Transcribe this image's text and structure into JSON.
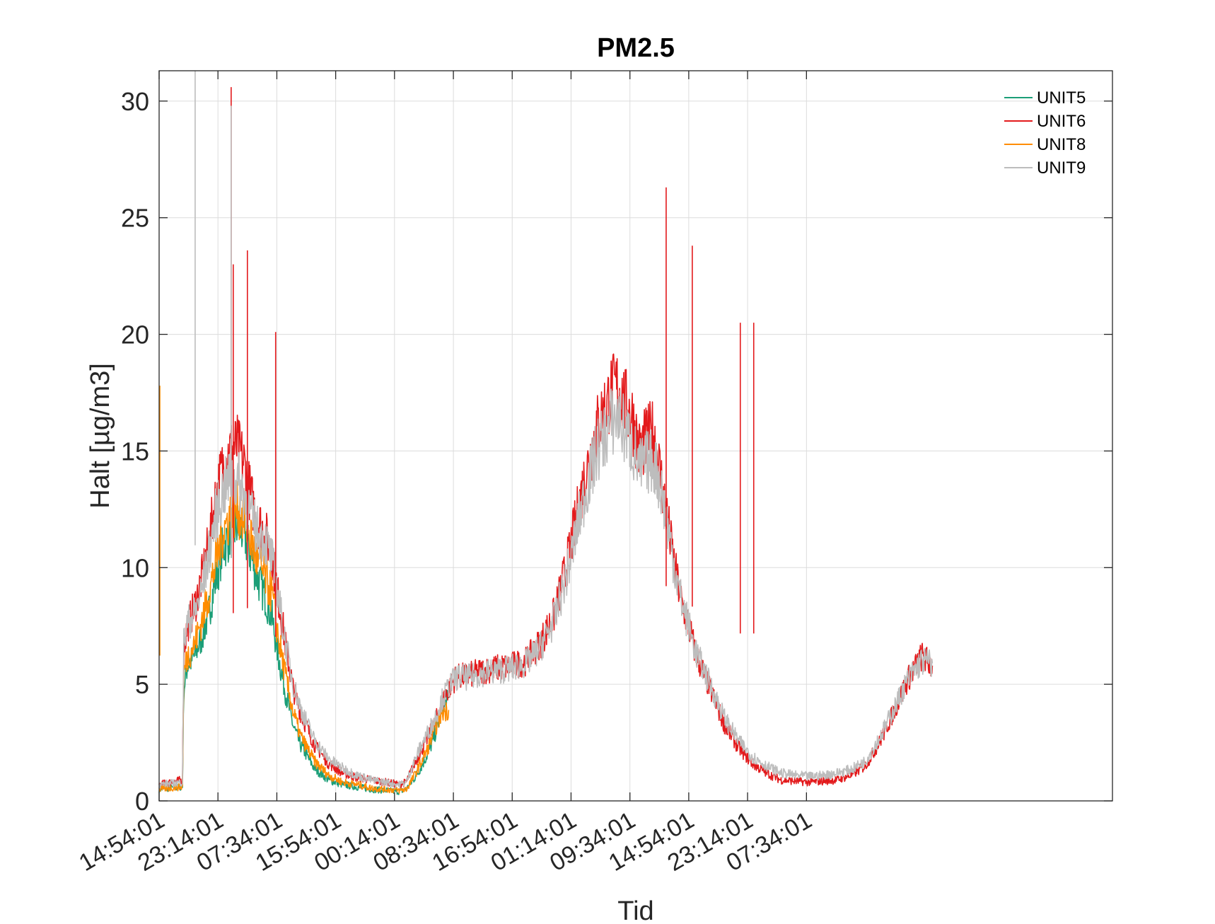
{
  "chart_data": {
    "type": "line",
    "title": "PM2.5",
    "xlabel": "Tid",
    "ylabel": "Halt [µg/m3]",
    "x_unit": "hours",
    "xlim": [
      0,
      135
    ],
    "ylim": [
      0,
      31.3
    ],
    "grid": true,
    "legend_position": "top-right",
    "x_ticks": [
      {
        "x": 0,
        "label": "14:54:01"
      },
      {
        "x": 8.33,
        "label": "23:14:01"
      },
      {
        "x": 16.67,
        "label": "07:34:01"
      },
      {
        "x": 25,
        "label": "15:54:01"
      },
      {
        "x": 33.33,
        "label": "00:14:01"
      },
      {
        "x": 41.67,
        "label": "08:34:01"
      },
      {
        "x": 50,
        "label": "16:54:01"
      },
      {
        "x": 58.33,
        "label": "01:14:01"
      },
      {
        "x": 66.67,
        "label": "09:34:01"
      },
      {
        "x": 75,
        "label": "14:54:01"
      },
      {
        "x": 83.33,
        "label": "23:14:01"
      },
      {
        "x": 91.67,
        "label": "07:34:01"
      }
    ],
    "y_ticks": [
      0,
      5,
      10,
      15,
      20,
      25,
      30
    ],
    "series": [
      {
        "name": "UNIT5",
        "color": "#1b9e77",
        "points": [
          [
            0,
            0.5
          ],
          [
            3.3,
            0.6
          ],
          [
            3.5,
            4.8
          ],
          [
            4,
            5.8
          ],
          [
            5,
            6.2
          ],
          [
            6,
            7.0
          ],
          [
            7,
            8.0
          ],
          [
            8,
            9.5
          ],
          [
            9,
            10.8
          ],
          [
            10,
            11.4
          ],
          [
            11,
            11.8
          ],
          [
            12,
            11.5
          ],
          [
            13,
            10.5
          ],
          [
            14,
            9.5
          ],
          [
            15,
            8.8
          ],
          [
            16,
            7.8
          ],
          [
            17,
            6.0
          ],
          [
            18,
            4.5
          ],
          [
            19,
            3.2
          ],
          [
            20,
            2.4
          ],
          [
            22,
            1.4
          ],
          [
            24,
            0.9
          ],
          [
            26,
            0.7
          ],
          [
            28,
            0.6
          ],
          [
            30,
            0.5
          ],
          [
            32,
            0.45
          ],
          [
            34,
            0.4
          ],
          [
            35,
            0.5
          ],
          [
            36,
            0.9
          ],
          [
            37,
            1.4
          ],
          [
            38,
            2.0
          ],
          [
            38.8,
            2.6
          ],
          [
            39.5,
            3.3
          ],
          [
            40,
            3.8
          ],
          [
            41,
            4.4
          ]
        ]
      },
      {
        "name": "UNIT6",
        "color": "#e31a1c",
        "points": [
          [
            0,
            0.7
          ],
          [
            3.3,
            0.9
          ],
          [
            3.5,
            6.5
          ],
          [
            4,
            7.5
          ],
          [
            5,
            8.3
          ],
          [
            6,
            9.5
          ],
          [
            7,
            11.0
          ],
          [
            8,
            13.0
          ],
          [
            9,
            14.3
          ],
          [
            10,
            15.0
          ],
          [
            11,
            15.2
          ],
          [
            12,
            14.5
          ],
          [
            13,
            13.0
          ],
          [
            14,
            12.0
          ],
          [
            15,
            11.5
          ],
          [
            16,
            10.5
          ],
          [
            17,
            8.5
          ],
          [
            18,
            6.5
          ],
          [
            19,
            4.8
          ],
          [
            20,
            3.8
          ],
          [
            22,
            2.4
          ],
          [
            24,
            1.6
          ],
          [
            26,
            1.2
          ],
          [
            28,
            1.0
          ],
          [
            30,
            0.9
          ],
          [
            32,
            0.8
          ],
          [
            34,
            0.7
          ],
          [
            35,
            0.8
          ],
          [
            36,
            1.5
          ],
          [
            37,
            2.1
          ],
          [
            38,
            2.7
          ],
          [
            39,
            3.3
          ],
          [
            40,
            4.2
          ],
          [
            41,
            4.8
          ],
          [
            42,
            5.3
          ],
          [
            44,
            5.4
          ],
          [
            46,
            5.6
          ],
          [
            48,
            5.7
          ],
          [
            50,
            5.8
          ],
          [
            52,
            6.0
          ],
          [
            54,
            6.8
          ],
          [
            56,
            8.0
          ],
          [
            58,
            10.5
          ],
          [
            60,
            13.5
          ],
          [
            62,
            16.0
          ],
          [
            64,
            17.5
          ],
          [
            65,
            17.8
          ],
          [
            66,
            17.0
          ],
          [
            67,
            16.5
          ],
          [
            68,
            15.0
          ],
          [
            69,
            15.5
          ],
          [
            70,
            15.8
          ],
          [
            71,
            14.0
          ],
          [
            72,
            12.0
          ],
          [
            73,
            10.0
          ],
          [
            74,
            8.5
          ],
          [
            75,
            7.5
          ],
          [
            76,
            6.3
          ],
          [
            78,
            4.8
          ],
          [
            80,
            3.3
          ],
          [
            82,
            2.3
          ],
          [
            84,
            1.6
          ],
          [
            86,
            1.2
          ],
          [
            88,
            0.9
          ],
          [
            90,
            0.85
          ],
          [
            92,
            0.8
          ],
          [
            94,
            0.85
          ],
          [
            96,
            0.9
          ],
          [
            98,
            1.1
          ],
          [
            100,
            1.5
          ],
          [
            102,
            2.5
          ],
          [
            104,
            3.8
          ],
          [
            106,
            5.2
          ],
          [
            108,
            6.2
          ],
          [
            109.5,
            5.8
          ]
        ]
      },
      {
        "name": "UNIT8",
        "color": "#ff8c00",
        "points": [
          [
            0,
            0.5
          ],
          [
            3.3,
            0.6
          ],
          [
            3.5,
            5.5
          ],
          [
            4,
            6.2
          ],
          [
            5,
            6.7
          ],
          [
            6,
            7.7
          ],
          [
            7,
            8.8
          ],
          [
            8,
            10.2
          ],
          [
            9,
            11.5
          ],
          [
            10,
            12.2
          ],
          [
            11,
            12.5
          ],
          [
            12,
            12.2
          ],
          [
            13,
            11.2
          ],
          [
            14,
            10.2
          ],
          [
            15,
            9.6
          ],
          [
            16,
            8.8
          ],
          [
            17,
            6.8
          ],
          [
            18,
            5.2
          ],
          [
            19,
            3.8
          ],
          [
            20,
            2.8
          ],
          [
            22,
            1.7
          ],
          [
            24,
            1.1
          ],
          [
            26,
            0.8
          ],
          [
            28,
            0.7
          ],
          [
            30,
            0.55
          ],
          [
            32,
            0.5
          ],
          [
            34,
            0.45
          ],
          [
            35,
            0.5
          ],
          [
            36,
            1.0
          ],
          [
            37,
            1.6
          ],
          [
            38,
            2.2
          ],
          [
            38.8,
            2.9
          ],
          [
            39.5,
            3.4
          ],
          [
            40,
            3.8
          ],
          [
            41,
            3.9
          ]
        ]
      },
      {
        "name": "UNIT9",
        "color": "#bdbdbd",
        "points": [
          [
            0,
            0.7
          ],
          [
            3.3,
            0.8
          ],
          [
            3.5,
            6.8
          ],
          [
            4,
            7.6
          ],
          [
            5,
            8.0
          ],
          [
            6,
            9.0
          ],
          [
            7,
            10.5
          ],
          [
            8,
            12.2
          ],
          [
            9,
            13.2
          ],
          [
            10,
            13.8
          ],
          [
            11,
            13.8
          ],
          [
            12,
            13.2
          ],
          [
            13,
            12.2
          ],
          [
            14,
            11.5
          ],
          [
            15,
            11.2
          ],
          [
            16,
            10.3
          ],
          [
            17,
            8.5
          ],
          [
            18,
            6.6
          ],
          [
            19,
            5.0
          ],
          [
            20,
            4.0
          ],
          [
            22,
            2.6
          ],
          [
            24,
            1.8
          ],
          [
            26,
            1.4
          ],
          [
            28,
            1.1
          ],
          [
            30,
            0.9
          ],
          [
            32,
            0.8
          ],
          [
            34,
            0.7
          ],
          [
            35,
            0.8
          ],
          [
            36,
            1.6
          ],
          [
            37,
            2.3
          ],
          [
            38,
            2.9
          ],
          [
            39,
            3.5
          ],
          [
            40,
            4.3
          ],
          [
            41,
            4.9
          ],
          [
            42,
            5.3
          ],
          [
            44,
            5.3
          ],
          [
            46,
            5.5
          ],
          [
            48,
            5.6
          ],
          [
            50,
            5.7
          ],
          [
            52,
            5.9
          ],
          [
            54,
            6.6
          ],
          [
            56,
            7.8
          ],
          [
            58,
            10.0
          ],
          [
            60,
            12.8
          ],
          [
            62,
            15.0
          ],
          [
            64,
            16.2
          ],
          [
            65,
            16.5
          ],
          [
            66,
            15.8
          ],
          [
            67,
            15.2
          ],
          [
            68,
            14.2
          ],
          [
            69,
            14.5
          ],
          [
            70,
            14.6
          ],
          [
            71,
            13.5
          ],
          [
            72,
            11.8
          ],
          [
            73,
            10.0
          ],
          [
            74,
            8.5
          ],
          [
            75,
            7.5
          ],
          [
            76,
            6.4
          ],
          [
            78,
            5.0
          ],
          [
            80,
            3.6
          ],
          [
            82,
            2.6
          ],
          [
            84,
            1.9
          ],
          [
            86,
            1.5
          ],
          [
            88,
            1.2
          ],
          [
            90,
            1.1
          ],
          [
            92,
            1.05
          ],
          [
            94,
            1.1
          ],
          [
            96,
            1.2
          ],
          [
            98,
            1.35
          ],
          [
            100,
            1.7
          ],
          [
            102,
            2.7
          ],
          [
            104,
            3.9
          ],
          [
            106,
            5.2
          ],
          [
            108,
            6.0
          ],
          [
            109.5,
            5.9
          ]
        ]
      }
    ],
    "spikes": [
      {
        "series": "UNIT9",
        "x": 5.1,
        "y": 31.3
      },
      {
        "series": "UNIT6",
        "x": 10.2,
        "y": 30.6
      },
      {
        "series": "UNIT9",
        "x": 10.2,
        "y": 29.8
      },
      {
        "series": "UNIT6",
        "x": 10.5,
        "y": 23.0
      },
      {
        "series": "UNIT6",
        "x": 12.5,
        "y": 23.6
      },
      {
        "series": "UNIT6",
        "x": 16.5,
        "y": 20.1
      },
      {
        "series": "UNIT6",
        "x": 71.8,
        "y": 26.3
      },
      {
        "series": "UNIT6",
        "x": 75.5,
        "y": 23.8
      },
      {
        "series": "UNIT6",
        "x": 82.3,
        "y": 20.5
      },
      {
        "series": "UNIT6",
        "x": 84.2,
        "y": 20.5
      },
      {
        "series": "UNIT8",
        "x": 0.1,
        "y": 17.8
      }
    ]
  }
}
